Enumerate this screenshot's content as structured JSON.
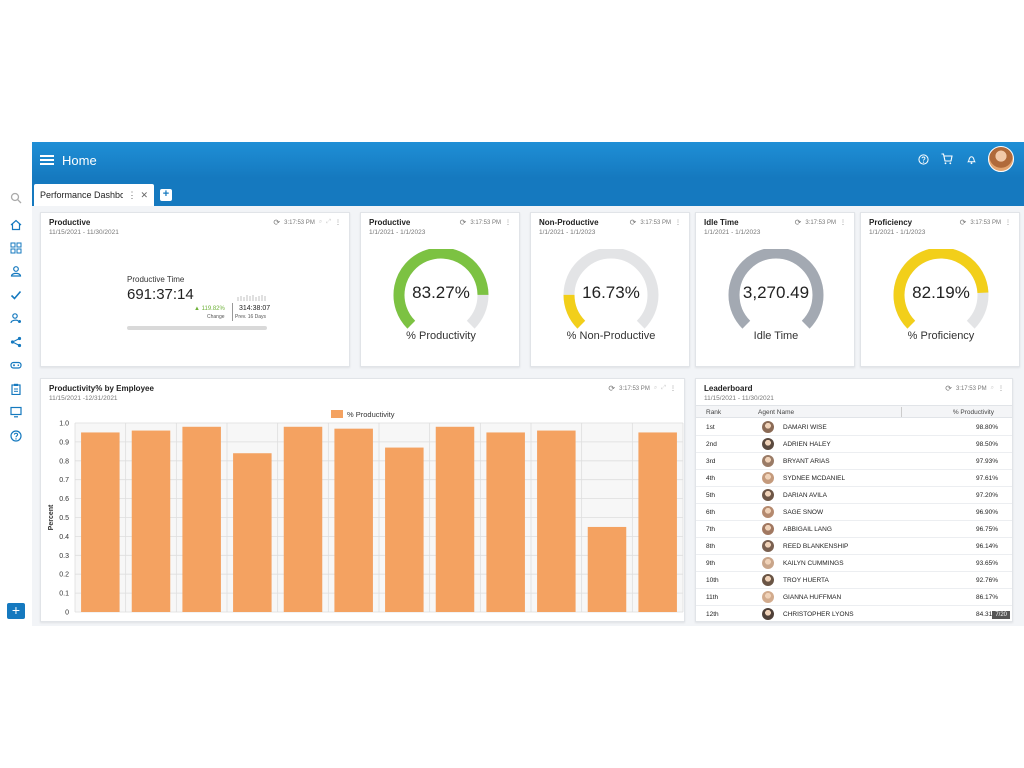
{
  "header": {
    "title": "Home"
  },
  "tabs": [
    {
      "label": "Performance Dashboard"
    }
  ],
  "cards": {
    "productive": {
      "title": "Productive",
      "date": "11/15/2021 - 11/30/2021",
      "time": "3:17:53 PM",
      "metric_label": "Productive Time",
      "metric_value": "691:37:14",
      "change": "▲ 119.82%",
      "change_label": "Change",
      "prev_value": "314:38:07",
      "prev_label": "Prev. 16 Days"
    },
    "gauges": [
      {
        "title": "Productive",
        "date": "1/1/2021 - 1/1/2023",
        "time": "3:17:53 PM",
        "value_text": "83.27%",
        "label": "% Productivity",
        "fraction": 0.8327,
        "color": "#7cc242"
      },
      {
        "title": "Non-Productive",
        "date": "1/1/2021 - 1/1/2023",
        "time": "3:17:53 PM",
        "value_text": "16.73%",
        "label": "% Non-Productive",
        "fraction": 0.1673,
        "color": "#f2cf1a"
      },
      {
        "title": "Idle Time",
        "date": "1/1/2021 - 1/1/2023",
        "time": "3:17:53 PM",
        "value_text": "3,270.49",
        "label": "Idle Time",
        "fraction": 1.0,
        "color": "#a3a9b2"
      },
      {
        "title": "Proficiency",
        "date": "1/1/2021 - 1/1/2023",
        "time": "3:17:53 PM",
        "value_text": "82.19%",
        "label": "% Proficiency",
        "fraction": 0.8219,
        "color": "#f2cf1a"
      }
    ],
    "employee_chart": {
      "title": "Productivity% by Employee",
      "date": "11/15/2021 -12/31/2021",
      "time": "3:17:53 PM"
    },
    "leaderboard": {
      "title": "Leaderboard",
      "date": "11/15/2021 - 11/30/2021",
      "time": "3:17:53 PM",
      "columns": {
        "rank": "Rank",
        "agent": "Agent Name",
        "pct": "% Productivity"
      },
      "rows": [
        {
          "rank": "1st",
          "name": "DAMARI WISE",
          "pct": "98.80%"
        },
        {
          "rank": "2nd",
          "name": "ADRIEN HALEY",
          "pct": "98.50%"
        },
        {
          "rank": "3rd",
          "name": "BRYANT ARIAS",
          "pct": "97.93%"
        },
        {
          "rank": "4th",
          "name": "SYDNEE MCDANIEL",
          "pct": "97.61%"
        },
        {
          "rank": "5th",
          "name": "DARIAN AVILA",
          "pct": "97.20%"
        },
        {
          "rank": "6th",
          "name": "SAGE SNOW",
          "pct": "96.90%"
        },
        {
          "rank": "7th",
          "name": "ABBIGAIL LANG",
          "pct": "96.75%"
        },
        {
          "rank": "8th",
          "name": "REED BLANKENSHIP",
          "pct": "96.14%"
        },
        {
          "rank": "9th",
          "name": "KAILYN CUMMINGS",
          "pct": "93.65%"
        },
        {
          "rank": "10th",
          "name": "TROY HUERTA",
          "pct": "92.76%"
        },
        {
          "rank": "11th",
          "name": "GIANNA HUFFMAN",
          "pct": "86.17%"
        },
        {
          "rank": "12th",
          "name": "CHRISTOPHER LYONS",
          "pct": "84.31%"
        }
      ],
      "pager": "7/20"
    }
  },
  "chart_data": {
    "type": "bar",
    "series": [
      {
        "name": "% Productivity",
        "values": [
          0.95,
          0.96,
          0.98,
          0.84,
          0.98,
          0.97,
          0.87,
          0.98,
          0.95,
          0.96,
          0.45,
          0.95
        ]
      }
    ],
    "ylabel": "Percent",
    "ylim": [
      0,
      1.0
    ],
    "yticks": [
      "0",
      "0.1",
      "0.2",
      "0.3",
      "0.4",
      "0.5",
      "0.6",
      "0.7",
      "0.8",
      "0.9",
      "1.0"
    ],
    "legend": "top-center",
    "grid": true,
    "bar_color": "#f4a261"
  },
  "colors": {
    "accent": "#1579bf",
    "bar": "#f4a261",
    "change": "#6fb23a"
  },
  "sidebar_icons": [
    "search-icon",
    "home-icon",
    "dashboard-icon",
    "user-icon",
    "check-icon",
    "user-settings-icon",
    "share-icon",
    "gamepad-icon",
    "clipboard-icon",
    "monitor-icon",
    "help-icon"
  ]
}
